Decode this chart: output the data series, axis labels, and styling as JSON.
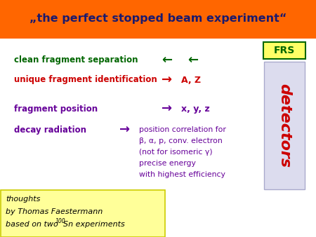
{
  "title": "„the perfect stopped beam experiment“",
  "title_bg": "#FF6600",
  "title_color": "#1A1A6E",
  "title_fontsize": 11.5,
  "bg_color": "#FFFFFF",
  "row1_label": "clean fragment separation",
  "row1_color": "#006600",
  "row2_label": "unique fragment identification",
  "row2_color": "#CC0000",
  "row2_result": "A, Z",
  "row3_label": "fragment position",
  "row3_color": "#660099",
  "row3_result": "x, y, z",
  "row4_label": "decay radiation",
  "row4_color": "#660099",
  "row4_result_lines": [
    "position correlation for",
    "β, α, p, conv. electron",
    "(not for isomeric γ)",
    "precise energy",
    "with highest efficiency"
  ],
  "frs_text": "FRS",
  "frs_bg": "#FFFF66",
  "frs_border": "#006600",
  "detectors_text": "detectors",
  "detectors_color": "#CC0000",
  "detectors_bg": "#DCDCEE",
  "note_lines": [
    "thoughts",
    "by Thomas Faestermann",
    "based on two "
  ],
  "note_sup": "100",
  "note_suffix": "Sn experiments",
  "note_bg": "#FFFF99",
  "note_border": "#CCCC00",
  "note_color": "#000000",
  "arrow_right": "→",
  "arrow_left": "←"
}
